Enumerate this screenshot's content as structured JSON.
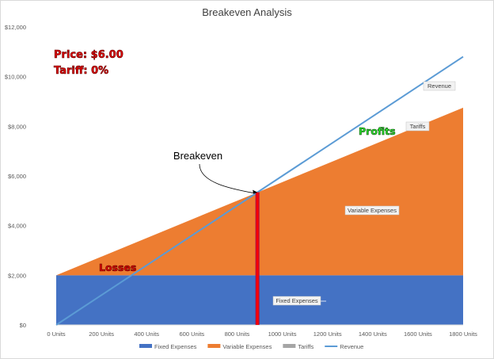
{
  "chart_data": {
    "type": "area",
    "title": "Breakeven Analysis",
    "x": [
      0,
      200,
      400,
      600,
      800,
      1000,
      1200,
      1400,
      1600,
      1800
    ],
    "x_tick_labels": [
      "0 Units",
      "200 Units",
      "400 Units",
      "600 Units",
      "800 Units",
      "1000 Units",
      "1200 Units",
      "1400 Units",
      "1600 Units",
      "1800 Units"
    ],
    "y_tick_labels": [
      "$0",
      "$2,000",
      "$4,000",
      "$6,000",
      "$8,000",
      "$10,000",
      "$12,000"
    ],
    "ylim": [
      0,
      12000
    ],
    "xlim": [
      0,
      1800
    ],
    "series": [
      {
        "name": "Fixed Expenses",
        "kind": "stacked-area",
        "color": "#4472c4",
        "values": [
          2000,
          2000,
          2000,
          2000,
          2000,
          2000,
          2000,
          2000,
          2000,
          2000
        ]
      },
      {
        "name": "Variable Expenses",
        "kind": "stacked-area",
        "color": "#ed7d31",
        "values": [
          0,
          750,
          1500,
          2250,
          3000,
          3750,
          4500,
          5250,
          6000,
          6750
        ]
      },
      {
        "name": "Tariffs",
        "kind": "stacked-area",
        "color": "#a5a5a5",
        "values": [
          0,
          0,
          0,
          0,
          0,
          0,
          0,
          0,
          0,
          0
        ]
      },
      {
        "name": "Revenue",
        "kind": "line",
        "color": "#5b9bd5",
        "values": [
          0,
          1200,
          2400,
          3600,
          4800,
          6000,
          7200,
          8400,
          9600,
          10800
        ]
      }
    ],
    "breakeven": {
      "label": "Breakeven",
      "x": 890,
      "y": 5340,
      "marker_color": "#ff0000"
    },
    "annotations": {
      "price": "Price: $6.00",
      "tariff": "Tariff: 0%",
      "losses": "Losses",
      "profits": "Profits"
    },
    "callouts": {
      "revenue": "Revenue",
      "tariffs": "Tariffs",
      "variable": "Variable Expenses",
      "fixed": "Fixed Expenses"
    },
    "legend_position": "bottom",
    "grid": false
  }
}
